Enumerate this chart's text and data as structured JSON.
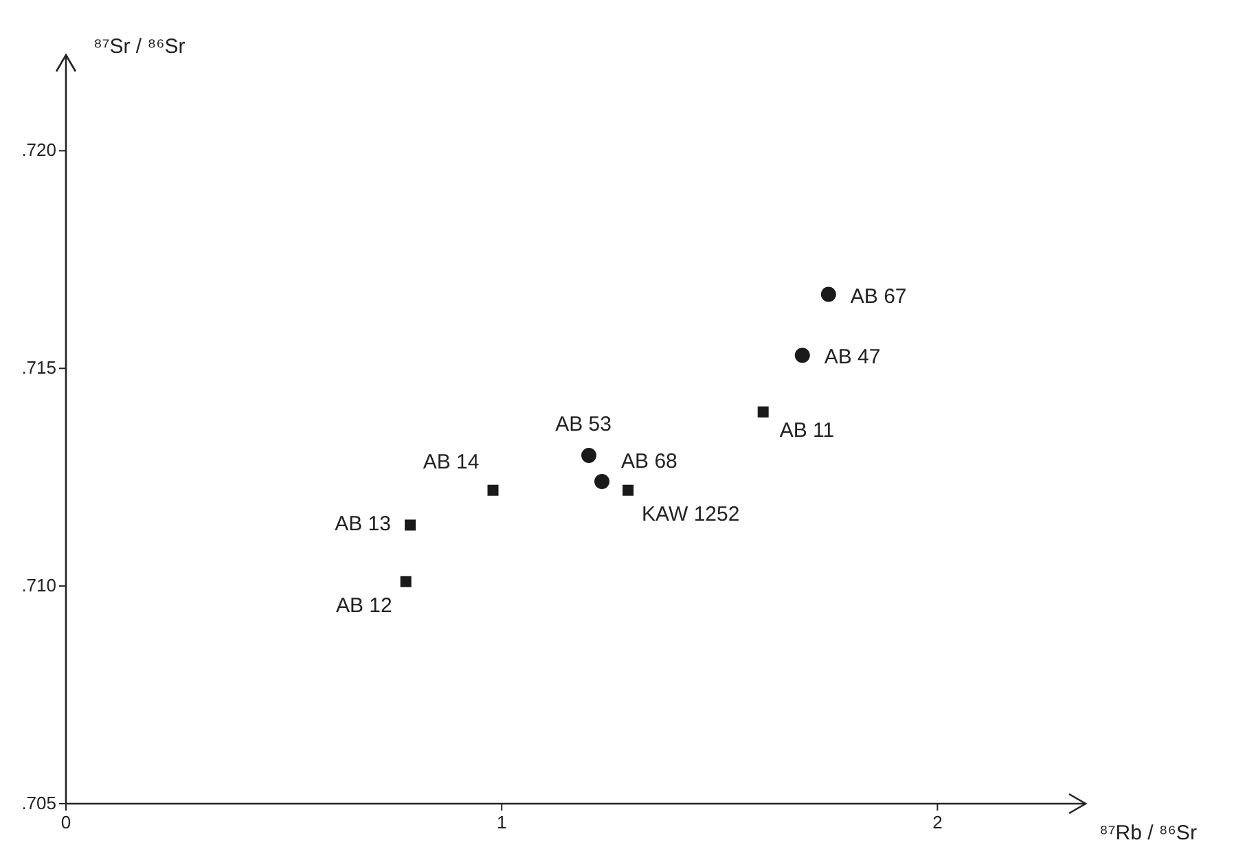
{
  "chart_data": {
    "type": "scatter",
    "xlabel": "⁸⁷Rb / ⁸⁶Sr",
    "ylabel": "⁸⁷Sr / ⁸⁶Sr",
    "xlim": [
      0,
      2.34
    ],
    "ylim": [
      0.705,
      0.7222
    ],
    "xticks": [
      0,
      1,
      2
    ],
    "yticks": [
      {
        "value": 0.705,
        "label": ".705"
      },
      {
        "value": 0.71,
        "label": ".710"
      },
      {
        "value": 0.715,
        "label": ".715"
      },
      {
        "value": 0.72,
        "label": ".720"
      }
    ],
    "series": [
      {
        "color": "#1a1a1a",
        "marker": "square",
        "x": [
          0.78,
          0.79,
          0.98,
          1.29,
          1.6
        ],
        "values": [
          0.7101,
          0.7114,
          0.7122,
          0.7122,
          0.714
        ]
      },
      {
        "color": "#1a1a1a",
        "marker": "circle",
        "x": [
          1.2,
          1.23,
          1.69,
          1.75
        ],
        "values": [
          0.713,
          0.7124,
          0.7153,
          0.7167
        ]
      }
    ],
    "annotations": [
      {
        "text": "AB 12",
        "x": 0.78,
        "y": 0.7101
      },
      {
        "text": "AB 13",
        "x": 0.79,
        "y": 0.7114
      },
      {
        "text": "AB 14",
        "x": 0.98,
        "y": 0.7122
      },
      {
        "text": "KAW 1252",
        "x": 1.29,
        "y": 0.7122
      },
      {
        "text": "AB 11",
        "x": 1.6,
        "y": 0.714
      },
      {
        "text": "AB 53",
        "x": 1.2,
        "y": 0.713
      },
      {
        "text": "AB 68",
        "x": 1.23,
        "y": 0.7124
      },
      {
        "text": "AB 47",
        "x": 1.69,
        "y": 0.7153
      },
      {
        "text": "AB 67",
        "x": 1.75,
        "y": 0.7167
      }
    ]
  }
}
